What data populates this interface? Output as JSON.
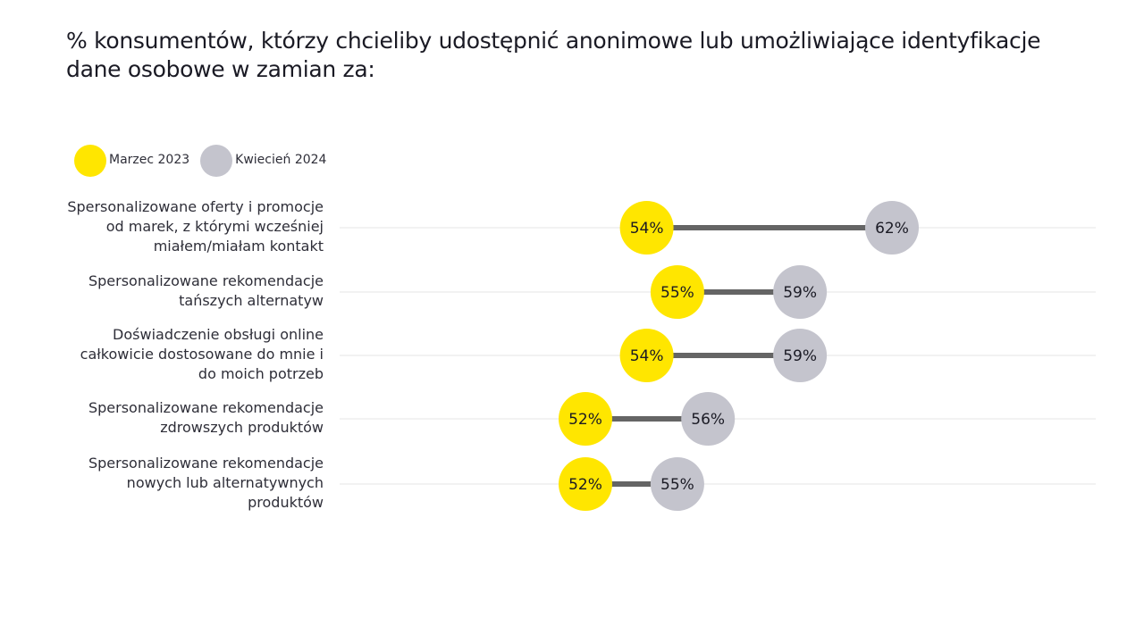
{
  "chart_data": {
    "type": "dumbbell",
    "title": "% konsumentów, którzy chcieliby udostępnić anonimowe lub umożliwiające identyfikacje dane osobowe w zamian za:",
    "xlabel": "",
    "ylabel": "",
    "xlim": [
      50,
      63
    ],
    "grid": true,
    "legend_position": "top-left",
    "colors": {
      "series_1": "#ffe600",
      "series_2": "#c4c4cd",
      "connector": "#656565",
      "gridline": "#e6e6e6"
    },
    "series": [
      {
        "name": "Marzec 2023",
        "values": [
          54,
          55,
          54,
          52,
          52
        ],
        "labels": [
          "54%",
          "55%",
          "54%",
          "52%",
          "52%"
        ]
      },
      {
        "name": "Kwiecień 2024",
        "values": [
          62,
          59,
          59,
          56,
          55
        ],
        "labels": [
          "62%",
          "59%",
          "59%",
          "56%",
          "55%"
        ]
      }
    ],
    "categories": [
      [
        "Spersonalizowane oferty i promocje",
        "od marek, z którymi wcześniej",
        "miałem/miałam kontakt"
      ],
      [
        "Spersonalizowane rekomendacje",
        "tańszych alternatyw"
      ],
      [
        "Doświadczenie obsługi online",
        "całkowicie dostosowane do mnie i",
        "do moich potrzeb"
      ],
      [
        "Spersonalizowane rekomendacje",
        "zdrowszych produktów"
      ],
      [
        "Spersonalizowane rekomendacje",
        "nowych lub alternatywnych",
        "produktów"
      ]
    ]
  }
}
